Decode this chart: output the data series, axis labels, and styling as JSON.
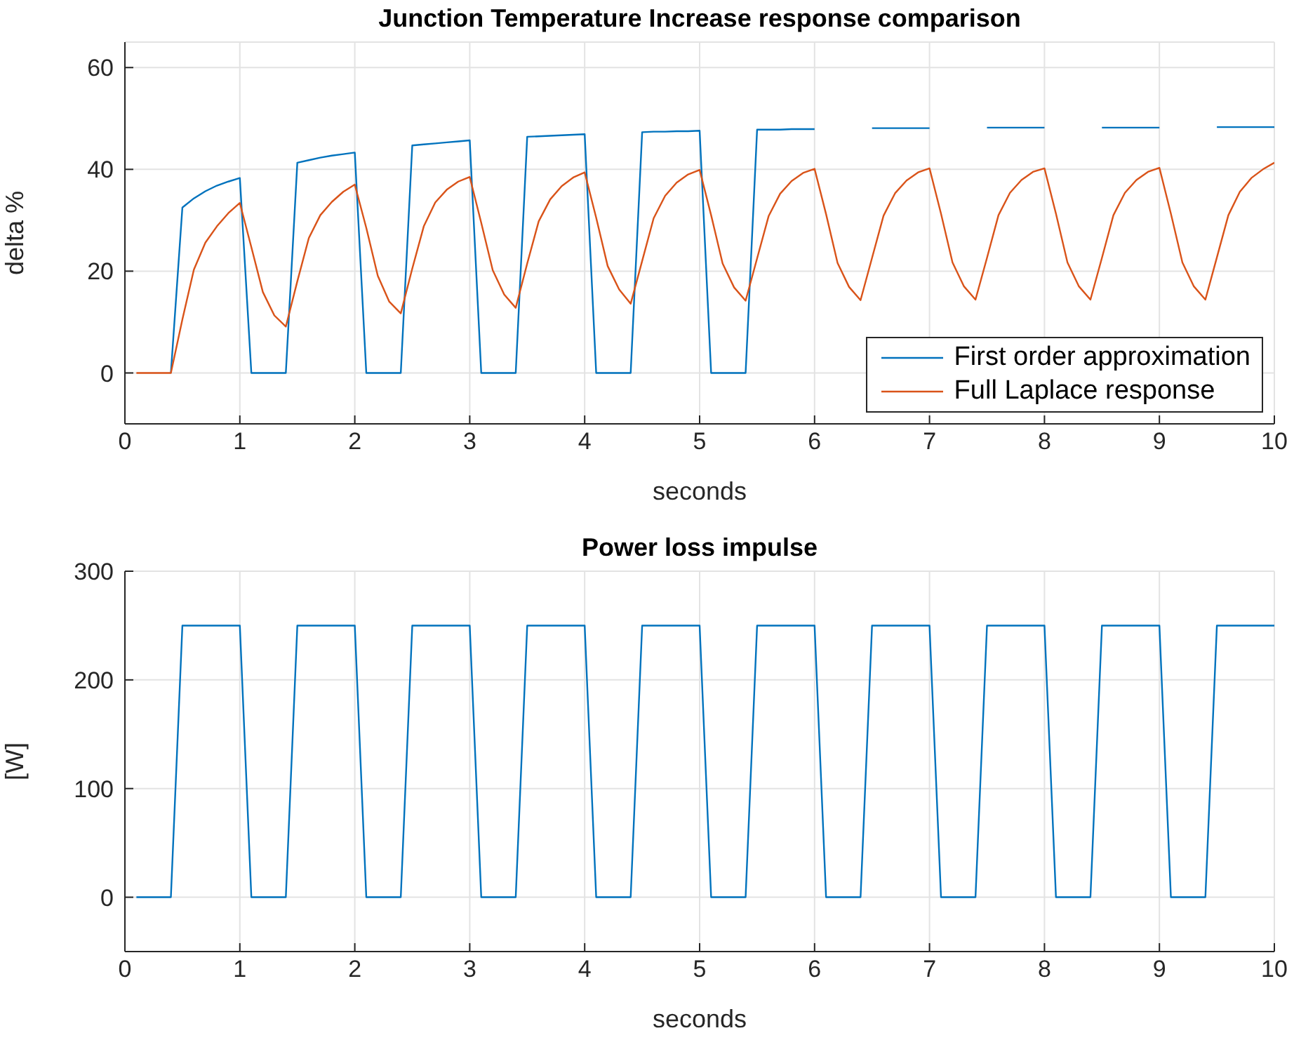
{
  "chart_data": [
    {
      "type": "line",
      "title": "Junction Temperature Increase response comparison",
      "xlabel": "seconds",
      "ylabel": "delta %",
      "x": [
        0.1,
        0.2,
        0.3,
        0.4,
        0.5,
        0.6,
        0.7,
        0.8,
        0.9,
        1.0,
        1.1,
        1.2,
        1.3,
        1.4,
        1.5,
        1.6,
        1.7,
        1.8,
        1.9,
        2.0,
        2.1,
        2.2,
        2.3,
        2.4,
        2.5,
        2.6,
        2.7,
        2.8,
        2.9,
        3.0,
        3.1,
        3.2,
        3.3,
        3.4,
        3.5,
        3.6,
        3.7,
        3.8,
        3.9,
        4.0,
        4.1,
        4.2,
        4.3,
        4.4,
        4.5,
        4.6,
        4.7,
        4.8,
        4.9,
        5.0,
        5.1,
        5.2,
        5.3,
        5.4,
        5.5,
        5.6,
        5.7,
        5.8,
        5.9,
        6.0,
        6.1,
        6.2,
        6.3,
        6.4,
        6.5,
        6.6,
        6.7,
        6.8,
        6.9,
        7.0,
        7.1,
        7.2,
        7.3,
        7.4,
        7.5,
        7.6,
        7.7,
        7.8,
        7.9,
        8.0,
        8.1,
        8.2,
        8.3,
        8.4,
        8.5,
        8.6,
        8.7,
        8.8,
        8.9,
        9.0,
        9.1,
        9.2,
        9.3,
        9.4,
        9.5,
        9.6,
        9.7,
        9.8,
        9.9,
        10.0
      ],
      "series": [
        {
          "name": "First order approximation",
          "color": "#0072bd",
          "values": [
            null,
            null,
            null,
            0,
            32.5,
            34.3,
            35.7,
            36.8,
            37.6,
            38.3,
            0,
            0,
            0,
            0,
            41.3,
            41.8,
            42.3,
            42.7,
            43.0,
            43.3,
            0,
            0,
            0,
            0,
            44.7,
            44.9,
            45.1,
            45.3,
            45.5,
            45.7,
            0,
            0,
            0,
            0,
            46.4,
            46.5,
            46.6,
            46.7,
            46.8,
            46.9,
            0,
            0,
            0,
            0,
            47.3,
            47.4,
            47.4,
            47.5,
            47.5,
            47.6,
            0,
            0,
            0,
            0,
            47.8,
            47.8,
            47.8,
            47.9,
            47.9,
            47.9,
            null,
            null,
            null,
            null,
            48.1,
            48.1,
            48.1,
            48.1,
            48.1,
            48.1,
            null,
            null,
            null,
            null,
            48.2,
            48.2,
            48.2,
            48.2,
            48.2,
            48.2,
            null,
            null,
            null,
            null,
            48.2,
            48.2,
            48.2,
            48.2,
            48.2,
            48.2,
            null,
            null,
            null,
            null,
            48.3,
            48.3,
            48.3,
            48.3,
            48.3,
            48.3
          ]
        },
        {
          "name": "Full Laplace response",
          "color": "#d95319",
          "values": [
            0,
            0,
            0,
            0,
            10.5,
            20.3,
            25.6,
            28.8,
            31.4,
            33.4,
            24.7,
            15.9,
            11.3,
            9.1,
            18.0,
            26.5,
            31.0,
            33.6,
            35.6,
            37.0,
            28.5,
            19.1,
            14.0,
            11.7,
            20.5,
            28.8,
            33.5,
            36.0,
            37.6,
            38.5,
            29.5,
            20.2,
            15.4,
            12.8,
            21.5,
            29.8,
            34.1,
            36.7,
            38.4,
            39.4,
            30.5,
            21.0,
            16.4,
            13.6,
            22.0,
            30.4,
            34.8,
            37.4,
            39.0,
            39.9,
            31.0,
            21.5,
            16.8,
            14.2,
            22.5,
            30.8,
            35.2,
            37.7,
            39.3,
            40.1,
            31.2,
            21.6,
            16.9,
            14.3,
            22.6,
            30.9,
            35.3,
            37.8,
            39.4,
            40.2,
            31.3,
            21.7,
            17.0,
            14.4,
            22.6,
            31.0,
            35.4,
            37.9,
            39.5,
            40.2,
            31.3,
            21.7,
            17.0,
            14.4,
            22.6,
            31.0,
            35.4,
            37.9,
            39.5,
            40.3,
            31.3,
            21.7,
            17.0,
            14.4,
            22.7,
            31.0,
            35.6,
            38.3,
            40.0,
            41.3
          ]
        }
      ],
      "xlim": [
        0,
        10
      ],
      "xticks": [
        0,
        1,
        2,
        3,
        4,
        5,
        6,
        7,
        8,
        9,
        10
      ],
      "ylim": [
        -10,
        65
      ],
      "yticks": [
        0,
        20,
        40,
        60
      ],
      "grid": true,
      "legend": "bottom right"
    },
    {
      "type": "line",
      "title": "Power loss impulse",
      "xlabel": "seconds",
      "ylabel": "[W]",
      "x": [
        0.1,
        0.2,
        0.3,
        0.4,
        0.5,
        0.6,
        0.7,
        0.8,
        0.9,
        1.0,
        1.1,
        1.2,
        1.3,
        1.4,
        1.5,
        1.6,
        1.7,
        1.8,
        1.9,
        2.0,
        2.1,
        2.2,
        2.3,
        2.4,
        2.5,
        2.6,
        2.7,
        2.8,
        2.9,
        3.0,
        3.1,
        3.2,
        3.3,
        3.4,
        3.5,
        3.6,
        3.7,
        3.8,
        3.9,
        4.0,
        4.1,
        4.2,
        4.3,
        4.4,
        4.5,
        4.6,
        4.7,
        4.8,
        4.9,
        5.0,
        5.1,
        5.2,
        5.3,
        5.4,
        5.5,
        5.6,
        5.7,
        5.8,
        5.9,
        6.0,
        6.1,
        6.2,
        6.3,
        6.4,
        6.5,
        6.6,
        6.7,
        6.8,
        6.9,
        7.0,
        7.1,
        7.2,
        7.3,
        7.4,
        7.5,
        7.6,
        7.7,
        7.8,
        7.9,
        8.0,
        8.1,
        8.2,
        8.3,
        8.4,
        8.5,
        8.6,
        8.7,
        8.8,
        8.9,
        9.0,
        9.1,
        9.2,
        9.3,
        9.4,
        9.5,
        9.6,
        9.7,
        9.8,
        9.9,
        10.0
      ],
      "series": [
        {
          "color": "#0072bd",
          "values": [
            0,
            0,
            0,
            0,
            250,
            250,
            250,
            250,
            250,
            250,
            0,
            0,
            0,
            0,
            250,
            250,
            250,
            250,
            250,
            250,
            0,
            0,
            0,
            0,
            250,
            250,
            250,
            250,
            250,
            250,
            0,
            0,
            0,
            0,
            250,
            250,
            250,
            250,
            250,
            250,
            0,
            0,
            0,
            0,
            250,
            250,
            250,
            250,
            250,
            250,
            0,
            0,
            0,
            0,
            250,
            250,
            250,
            250,
            250,
            250,
            0,
            0,
            0,
            0,
            250,
            250,
            250,
            250,
            250,
            250,
            0,
            0,
            0,
            0,
            250,
            250,
            250,
            250,
            250,
            250,
            0,
            0,
            0,
            0,
            250,
            250,
            250,
            250,
            250,
            250,
            0,
            0,
            0,
            0,
            250,
            250,
            250,
            250,
            250,
            250
          ]
        }
      ],
      "xlim": [
        0,
        10
      ],
      "xticks": [
        0,
        1,
        2,
        3,
        4,
        5,
        6,
        7,
        8,
        9,
        10
      ],
      "ylim": [
        -50,
        300
      ],
      "yticks": [
        0,
        100,
        200,
        300
      ],
      "grid": true,
      "legend": false
    }
  ]
}
